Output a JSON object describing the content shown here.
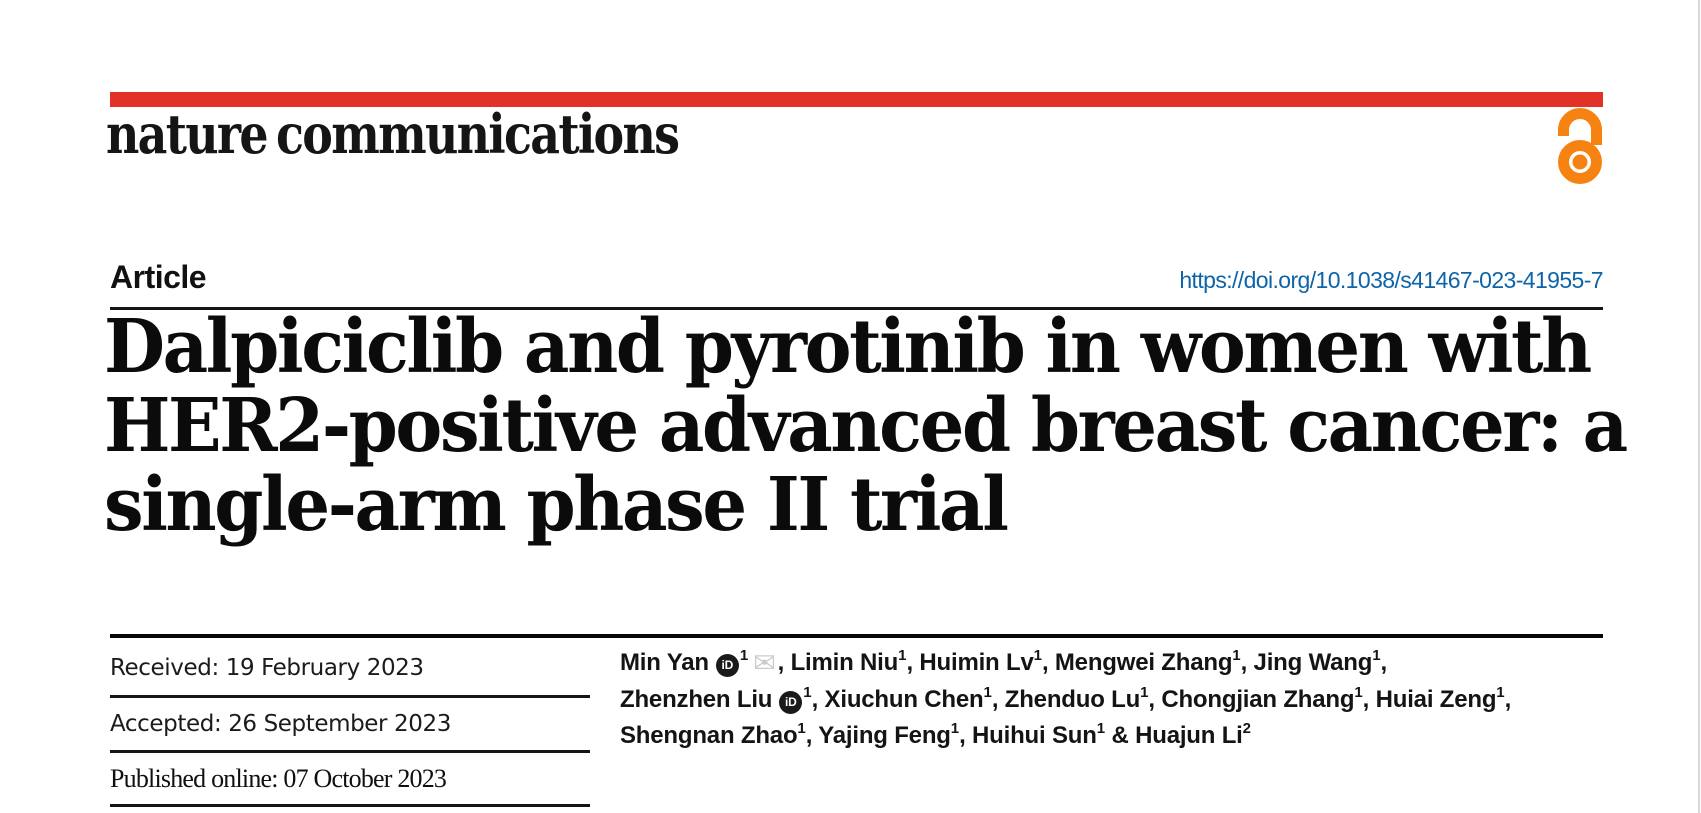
{
  "journal": {
    "name": "nature communications"
  },
  "article": {
    "type_label": "Article",
    "doi": "https://doi.org/10.1038/s41467-023-41955-7"
  },
  "title": {
    "lines": [
      "Dalpiciclib and pyrotinib in women with",
      "HER2-positive advanced breast cancer: a",
      "single-arm phase II trial"
    ]
  },
  "dates": {
    "received": "Received: 19 February 2023",
    "accepted": "Accepted: 26 September 2023",
    "published": "Published online: 07 October 2023"
  },
  "authors": {
    "lines": [
      [
        {
          "text": "Min Yan"
        },
        {
          "icon": "orcid"
        },
        {
          "sup": "1"
        },
        {
          "icon": "email"
        },
        {
          "text": ", Limin Niu"
        },
        {
          "sup": "1"
        },
        {
          "text": ", Huimin Lv"
        },
        {
          "sup": "1"
        },
        {
          "text": ", Mengwei Zhang"
        },
        {
          "sup": "1"
        },
        {
          "text": ", Jing Wang"
        },
        {
          "sup": "1"
        },
        {
          "text": ","
        }
      ],
      [
        {
          "text": "Zhenzhen Liu"
        },
        {
          "icon": "orcid"
        },
        {
          "sup": "1"
        },
        {
          "text": ", Xiuchun Chen"
        },
        {
          "sup": "1"
        },
        {
          "text": ", Zhenduo Lu"
        },
        {
          "sup": "1"
        },
        {
          "text": ", Chongjian Zhang"
        },
        {
          "sup": "1"
        },
        {
          "text": ", Huiai Zeng"
        },
        {
          "sup": "1"
        },
        {
          "text": ","
        }
      ],
      [
        {
          "text": "Shengnan Zhao"
        },
        {
          "sup": "1"
        },
        {
          "text": ", Yajing Feng"
        },
        {
          "sup": "1"
        },
        {
          "text": ", Huihui Sun"
        },
        {
          "sup": "1"
        },
        {
          "text": " & Huajun Li"
        },
        {
          "sup": "2"
        }
      ]
    ]
  },
  "icons": {
    "orcid_glyph": "iD",
    "email_glyph": "✉"
  },
  "colors": {
    "brand_red": "#e23127",
    "open_access_orange": "#f68212",
    "link_blue": "#0d64a8",
    "text_black": "#161616",
    "envelope_gray": "#cccccc"
  }
}
